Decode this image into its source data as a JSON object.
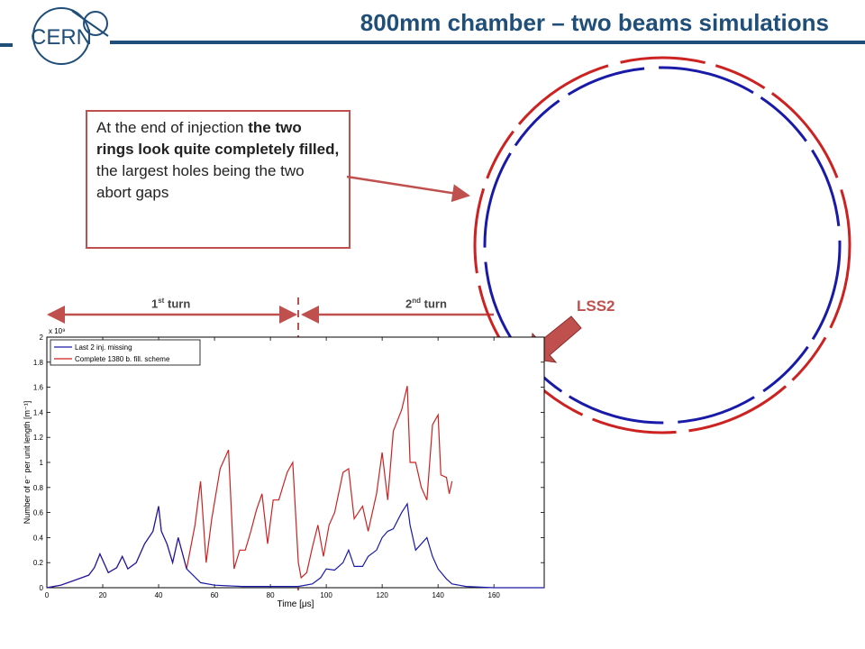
{
  "header": {
    "title": "800mm chamber – two beams simulations",
    "logo_text": "CERN"
  },
  "callout": {
    "parts": [
      {
        "text": "At the end of injection ",
        "bold": false
      },
      {
        "text": "the two rings look quite completely filled,",
        "bold": true
      },
      {
        "text": " the largest holes being the two abort gaps",
        "bold": false
      }
    ]
  },
  "turns": {
    "first": {
      "number": "1",
      "suffix": "st",
      "word": "turn"
    },
    "second": {
      "number": "2",
      "suffix": "nd",
      "word": "turn"
    }
  },
  "ring": {
    "label": "LSS2",
    "colors": {
      "outer": "#cc2222",
      "inner": "#1a1aa8"
    }
  },
  "chart_data": {
    "type": "line",
    "xlabel": "Time [μs]",
    "ylabel": "Number of e⁻ per unit length [m⁻¹]",
    "y_multiplier": "x 10⁹",
    "xlim": [
      0,
      178
    ],
    "ylim": [
      0,
      2
    ],
    "xticks": [
      0,
      20,
      40,
      60,
      80,
      100,
      120,
      140,
      160
    ],
    "yticks": [
      0,
      0.2,
      0.4,
      0.6,
      0.8,
      1,
      1.2,
      1.4,
      1.6,
      1.8,
      2
    ],
    "legend_position": "top-left",
    "series": [
      {
        "name": "Last 2 inj. missing",
        "color": "#1a1aa8",
        "x": [
          0,
          5,
          10,
          15,
          17,
          19,
          22,
          25,
          27,
          29,
          32,
          35,
          38,
          40,
          41,
          43,
          45,
          47,
          50,
          55,
          60,
          70,
          80,
          90,
          95,
          98,
          100,
          103,
          106,
          108,
          110,
          113,
          115,
          118,
          120,
          122,
          124,
          127,
          129,
          130,
          132,
          134,
          136,
          138,
          140,
          143,
          145,
          150,
          160,
          178
        ],
        "y": [
          0,
          0.02,
          0.06,
          0.1,
          0.16,
          0.27,
          0.12,
          0.16,
          0.25,
          0.15,
          0.2,
          0.35,
          0.45,
          0.65,
          0.45,
          0.35,
          0.2,
          0.4,
          0.15,
          0.04,
          0.02,
          0.01,
          0.01,
          0.01,
          0.03,
          0.08,
          0.15,
          0.14,
          0.2,
          0.3,
          0.17,
          0.17,
          0.25,
          0.3,
          0.4,
          0.45,
          0.47,
          0.6,
          0.67,
          0.5,
          0.3,
          0.35,
          0.4,
          0.25,
          0.15,
          0.07,
          0.03,
          0.01,
          0,
          0
        ]
      },
      {
        "name": "Complete 1380 b. fill. scheme",
        "color": "#cc2222",
        "x": [
          0,
          5,
          10,
          15,
          17,
          19,
          22,
          25,
          27,
          29,
          32,
          35,
          38,
          40,
          41,
          43,
          45,
          47,
          50,
          53,
          55,
          57,
          59,
          62,
          65,
          67,
          69,
          71,
          73,
          75,
          77,
          79,
          81,
          83,
          86,
          88,
          90,
          91,
          93,
          95,
          97,
          99,
          101,
          103,
          106,
          108,
          110,
          113,
          115,
          118,
          120,
          122,
          124,
          127,
          129,
          130,
          132,
          134,
          136,
          138,
          140,
          141,
          143,
          144,
          145
        ],
        "y": [
          0,
          0.02,
          0.06,
          0.1,
          0.16,
          0.27,
          0.12,
          0.16,
          0.25,
          0.15,
          0.2,
          0.35,
          0.45,
          0.65,
          0.45,
          0.35,
          0.2,
          0.4,
          0.15,
          0.5,
          0.85,
          0.2,
          0.55,
          0.95,
          1.1,
          0.15,
          0.3,
          0.3,
          0.45,
          0.62,
          0.75,
          0.35,
          0.7,
          0.7,
          0.92,
          1.0,
          0.2,
          0.08,
          0.12,
          0.32,
          0.5,
          0.25,
          0.5,
          0.6,
          0.92,
          0.95,
          0.55,
          0.65,
          0.45,
          0.75,
          1.08,
          0.7,
          1.25,
          1.42,
          1.61,
          1.0,
          1.0,
          0.8,
          0.7,
          1.3,
          1.38,
          0.9,
          0.88,
          0.75,
          0.85
        ]
      }
    ]
  }
}
